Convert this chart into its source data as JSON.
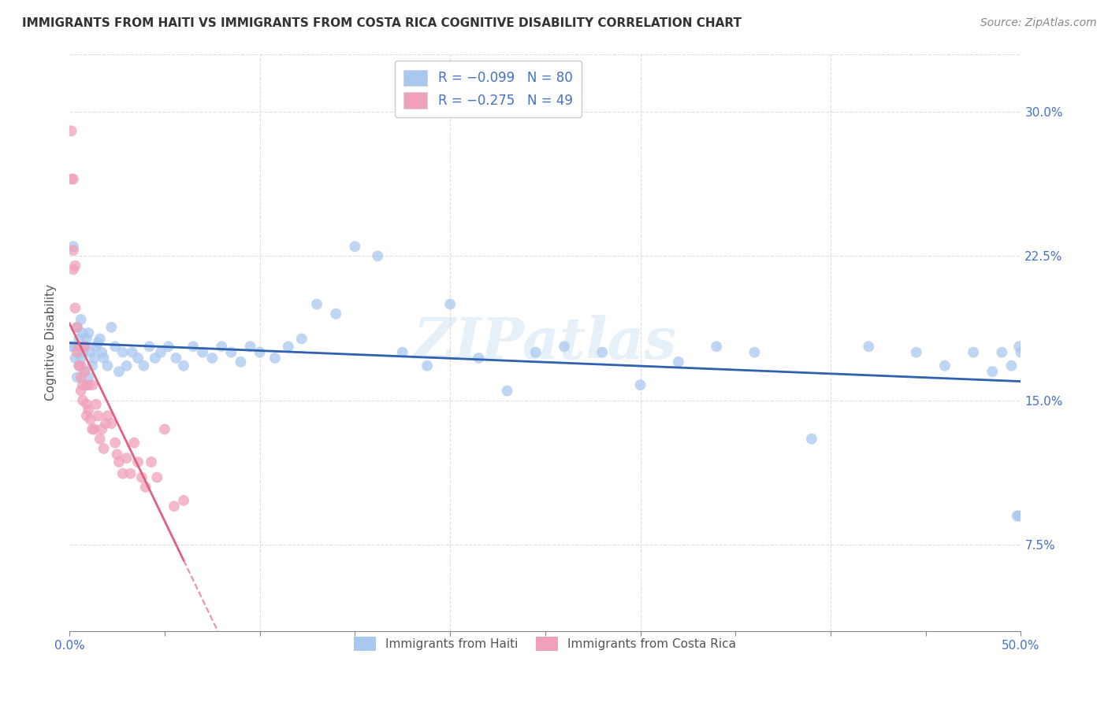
{
  "title": "IMMIGRANTS FROM HAITI VS IMMIGRANTS FROM COSTA RICA COGNITIVE DISABILITY CORRELATION CHART",
  "source": "Source: ZipAtlas.com",
  "ylabel": "Cognitive Disability",
  "ytick_labels": [
    "7.5%",
    "15.0%",
    "22.5%",
    "30.0%"
  ],
  "ytick_values": [
    0.075,
    0.15,
    0.225,
    0.3
  ],
  "xlim": [
    0.0,
    0.5
  ],
  "ylim": [
    0.03,
    0.33
  ],
  "color_haiti": "#A8C8F0",
  "color_costa_rica": "#F0A0B8",
  "color_line_haiti": "#3060B0",
  "color_line_costa_rica": "#E06080",
  "legend_label1": "Immigrants from Haiti",
  "legend_label2": "Immigrants from Costa Rica",
  "haiti_R": -0.099,
  "haiti_N": 80,
  "costa_rica_R": -0.275,
  "costa_rica_N": 49,
  "haiti_points_x": [
    0.001,
    0.002,
    0.003,
    0.003,
    0.004,
    0.004,
    0.005,
    0.005,
    0.006,
    0.006,
    0.007,
    0.007,
    0.008,
    0.008,
    0.009,
    0.009,
    0.01,
    0.01,
    0.011,
    0.012,
    0.013,
    0.014,
    0.015,
    0.016,
    0.017,
    0.018,
    0.02,
    0.022,
    0.024,
    0.026,
    0.028,
    0.03,
    0.033,
    0.036,
    0.039,
    0.042,
    0.045,
    0.048,
    0.052,
    0.056,
    0.06,
    0.065,
    0.07,
    0.075,
    0.08,
    0.085,
    0.09,
    0.095,
    0.1,
    0.108,
    0.115,
    0.122,
    0.13,
    0.14,
    0.15,
    0.162,
    0.175,
    0.188,
    0.2,
    0.215,
    0.23,
    0.245,
    0.26,
    0.28,
    0.3,
    0.32,
    0.34,
    0.36,
    0.39,
    0.42,
    0.445,
    0.46,
    0.475,
    0.485,
    0.49,
    0.495,
    0.498,
    0.499,
    0.499,
    0.5
  ],
  "haiti_points_y": [
    0.178,
    0.23,
    0.178,
    0.172,
    0.188,
    0.162,
    0.182,
    0.168,
    0.192,
    0.172,
    0.185,
    0.175,
    0.178,
    0.165,
    0.182,
    0.158,
    0.185,
    0.162,
    0.175,
    0.168,
    0.172,
    0.178,
    0.18,
    0.182,
    0.175,
    0.172,
    0.168,
    0.188,
    0.178,
    0.165,
    0.175,
    0.168,
    0.175,
    0.172,
    0.168,
    0.178,
    0.172,
    0.175,
    0.178,
    0.172,
    0.168,
    0.178,
    0.175,
    0.172,
    0.178,
    0.175,
    0.17,
    0.178,
    0.175,
    0.172,
    0.178,
    0.182,
    0.2,
    0.195,
    0.23,
    0.225,
    0.175,
    0.168,
    0.2,
    0.172,
    0.155,
    0.175,
    0.178,
    0.175,
    0.158,
    0.17,
    0.178,
    0.175,
    0.13,
    0.178,
    0.175,
    0.168,
    0.175,
    0.165,
    0.175,
    0.168,
    0.09,
    0.09,
    0.178,
    0.175
  ],
  "costa_rica_points_x": [
    0.001,
    0.001,
    0.002,
    0.002,
    0.002,
    0.003,
    0.003,
    0.004,
    0.004,
    0.005,
    0.005,
    0.006,
    0.006,
    0.006,
    0.007,
    0.007,
    0.008,
    0.008,
    0.009,
    0.009,
    0.01,
    0.01,
    0.011,
    0.012,
    0.012,
    0.013,
    0.014,
    0.015,
    0.016,
    0.017,
    0.018,
    0.019,
    0.02,
    0.022,
    0.024,
    0.025,
    0.026,
    0.028,
    0.03,
    0.032,
    0.034,
    0.036,
    0.038,
    0.04,
    0.043,
    0.046,
    0.05,
    0.055,
    0.06
  ],
  "costa_rica_points_y": [
    0.29,
    0.265,
    0.265,
    0.228,
    0.218,
    0.22,
    0.198,
    0.188,
    0.175,
    0.178,
    0.168,
    0.168,
    0.162,
    0.155,
    0.158,
    0.15,
    0.178,
    0.165,
    0.148,
    0.142,
    0.158,
    0.145,
    0.14,
    0.158,
    0.135,
    0.135,
    0.148,
    0.142,
    0.13,
    0.135,
    0.125,
    0.138,
    0.142,
    0.138,
    0.128,
    0.122,
    0.118,
    0.112,
    0.12,
    0.112,
    0.128,
    0.118,
    0.11,
    0.105,
    0.118,
    0.11,
    0.135,
    0.095,
    0.098
  ],
  "background_color": "#FFFFFF",
  "grid_color": "#DDDDDD"
}
